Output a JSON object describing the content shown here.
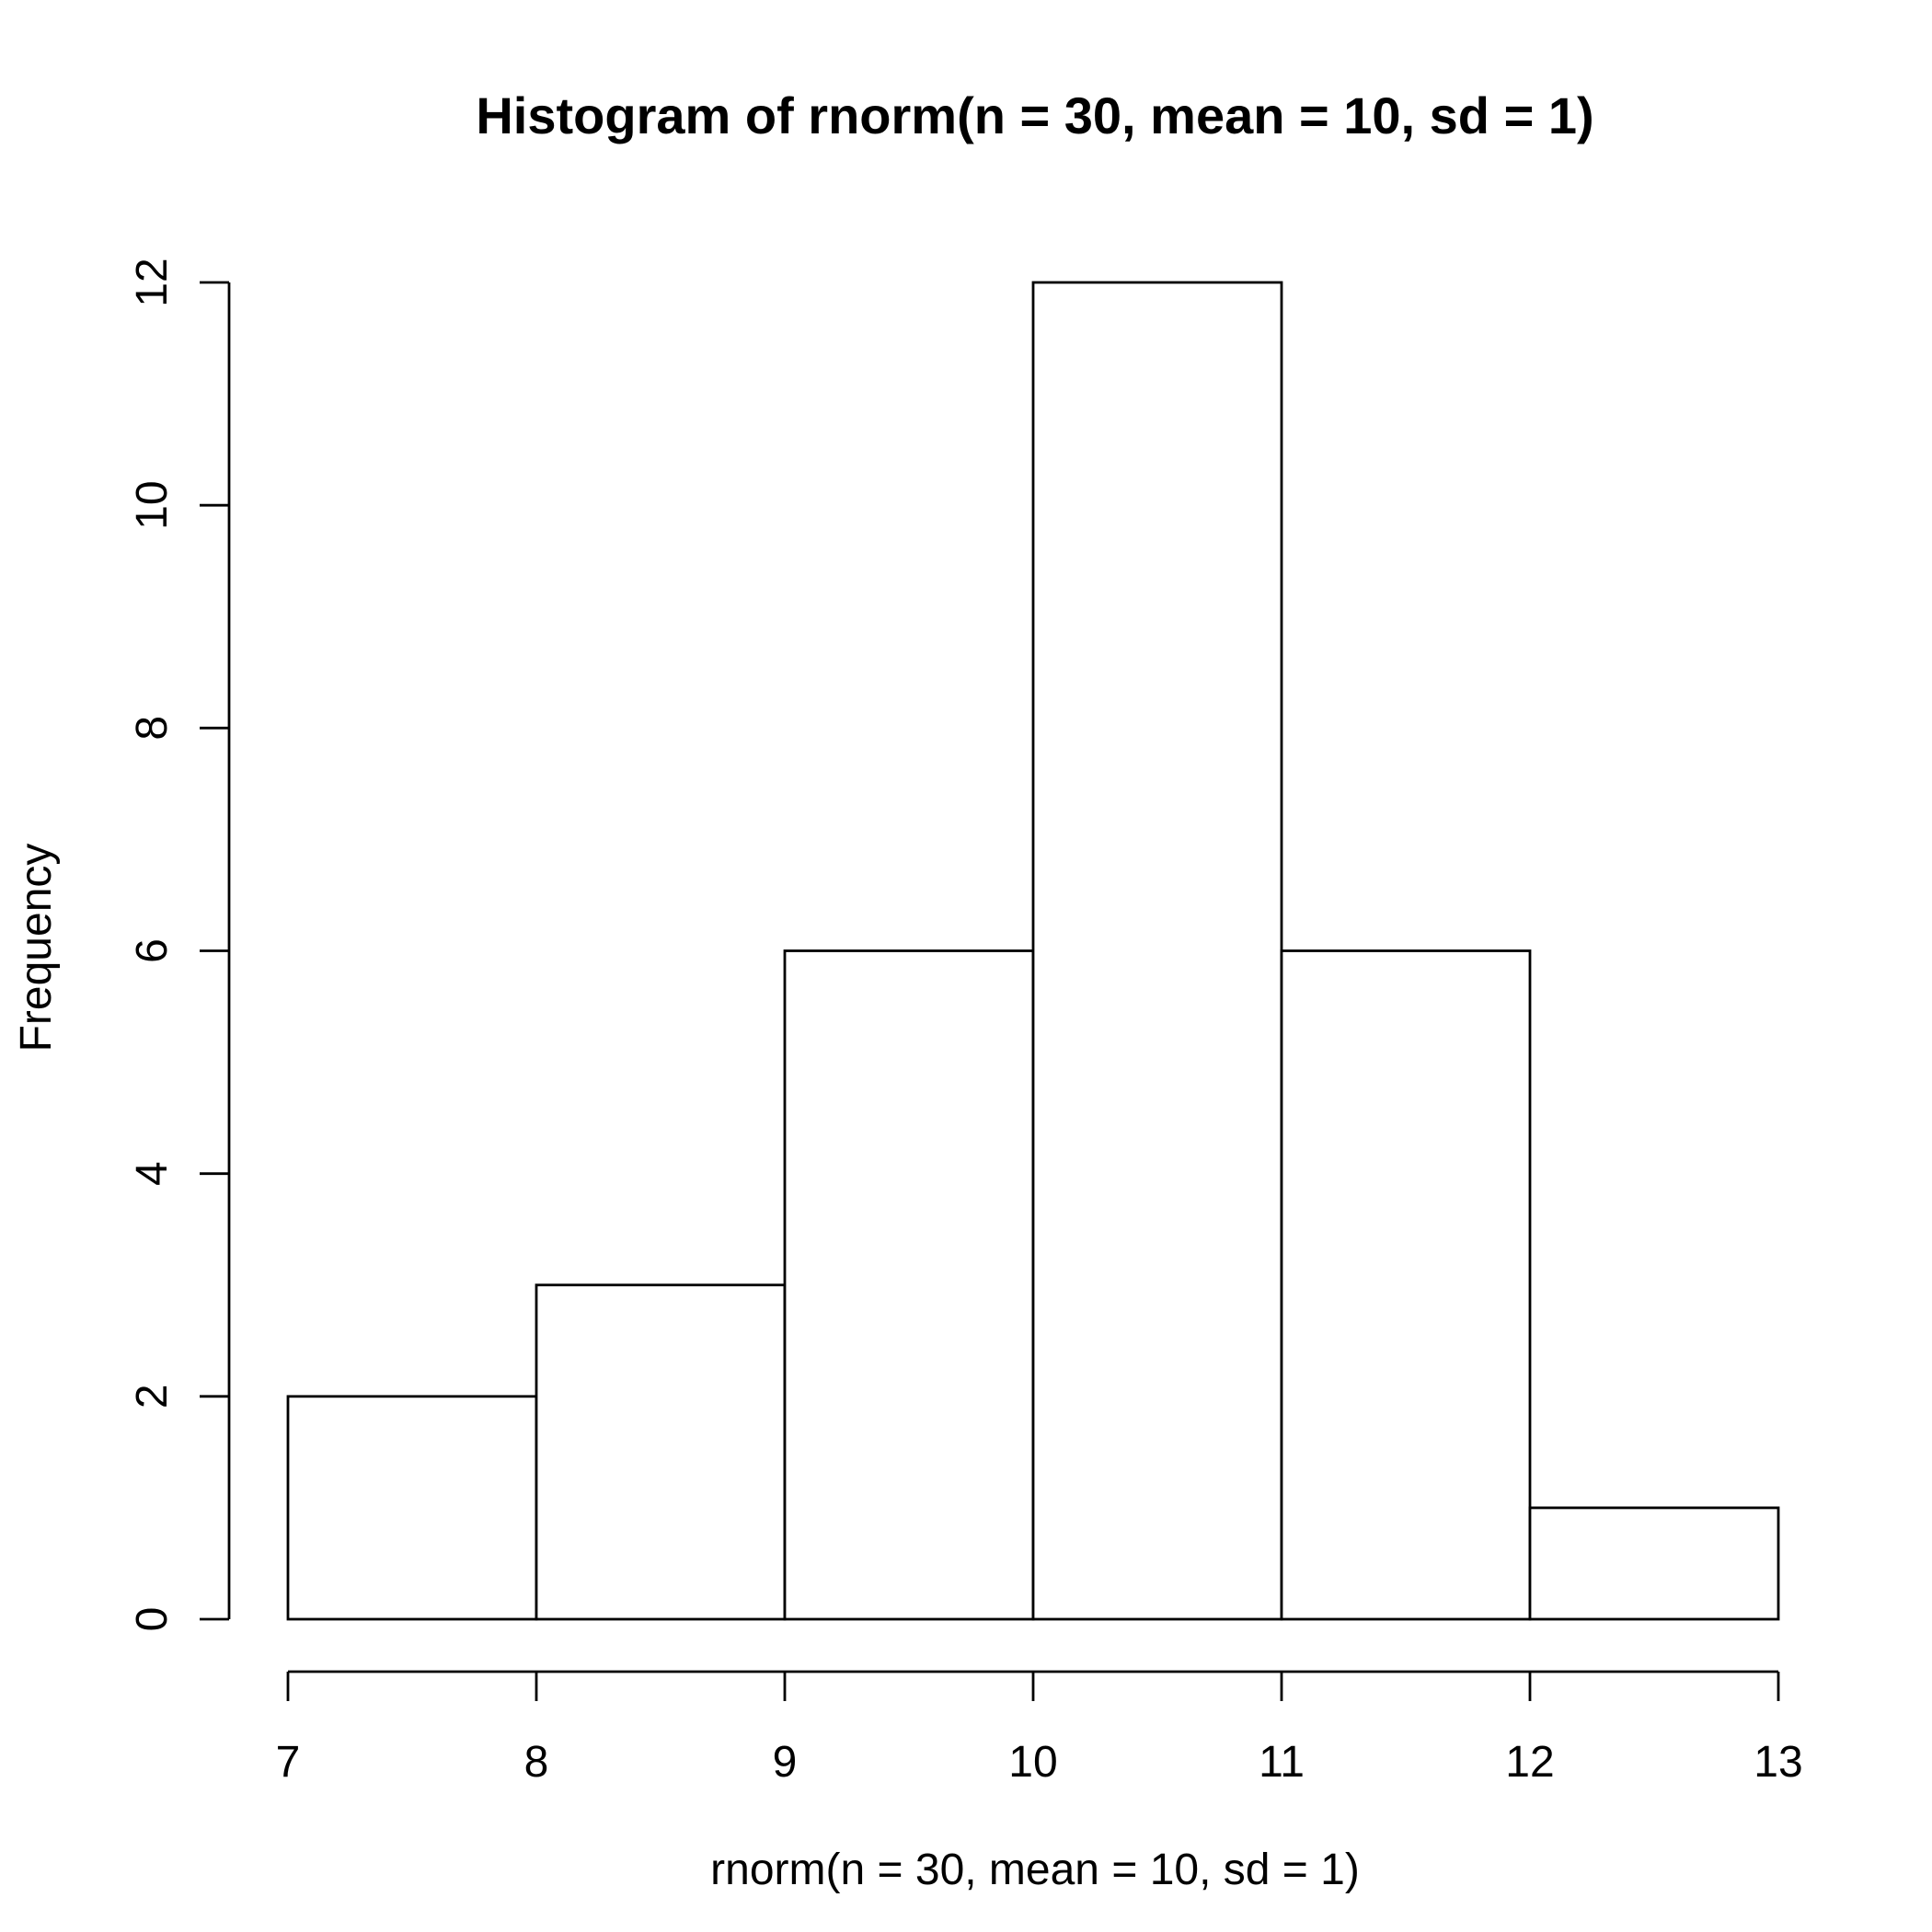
{
  "chart_data": {
    "type": "bar",
    "title": "Histogram of rnorm(n = 30, mean = 10, sd = 1)",
    "xlabel": "rnorm(n = 30, mean = 10, sd = 1)",
    "ylabel": "Frequency",
    "bins": [
      {
        "x0": 7,
        "x1": 8,
        "count": 2
      },
      {
        "x0": 8,
        "x1": 9,
        "count": 3
      },
      {
        "x0": 9,
        "x1": 10,
        "count": 6
      },
      {
        "x0": 10,
        "x1": 11,
        "count": 12
      },
      {
        "x0": 11,
        "x1": 12,
        "count": 6
      },
      {
        "x0": 12,
        "x1": 13,
        "count": 1
      }
    ],
    "xlim": [
      7,
      13
    ],
    "ylim": [
      0,
      12
    ],
    "xticks": [
      "7",
      "8",
      "9",
      "10",
      "11",
      "12",
      "13"
    ],
    "yticks": [
      "0",
      "2",
      "4",
      "6",
      "8",
      "10",
      "12"
    ],
    "grid": false,
    "legend": "none"
  }
}
